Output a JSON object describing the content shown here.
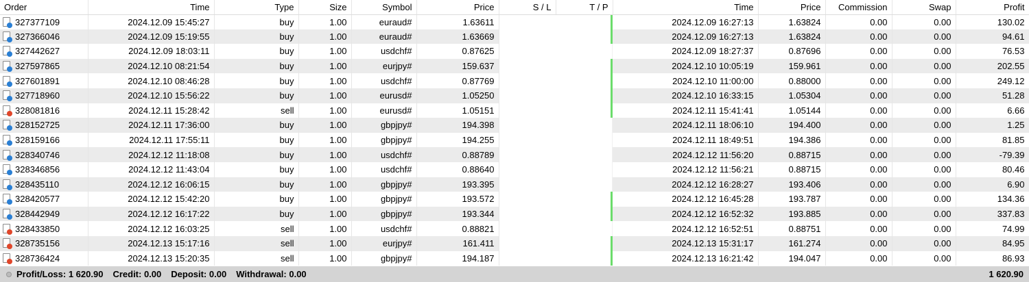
{
  "columns": [
    "Order",
    "Time",
    "Type",
    "Size",
    "Symbol",
    "Price",
    "S / L",
    "T / P",
    "Time",
    "Price",
    "Commission",
    "Swap",
    "Profit"
  ],
  "colors": {
    "profit_marker": "#6bdc6b",
    "buy_icon": "#2a7fd4",
    "sell_icon": "#e0462a",
    "row_alt": "#ebebeb",
    "footer_bg": "#d4d4d4"
  },
  "rows": [
    {
      "order": "327377109",
      "open_time": "2024.12.09 15:45:27",
      "type": "buy",
      "size": "1.00",
      "symbol": "euraud#",
      "open_price": "1.63611",
      "sl": "",
      "tp": "",
      "tp_marker": true,
      "close_time": "2024.12.09 16:27:13",
      "close_price": "1.63824",
      "commission": "0.00",
      "swap": "0.00",
      "profit": "130.02"
    },
    {
      "order": "327366046",
      "open_time": "2024.12.09 15:19:55",
      "type": "buy",
      "size": "1.00",
      "symbol": "euraud#",
      "open_price": "1.63669",
      "sl": "",
      "tp": "",
      "tp_marker": true,
      "close_time": "2024.12.09 16:27:13",
      "close_price": "1.63824",
      "commission": "0.00",
      "swap": "0.00",
      "profit": "94.61"
    },
    {
      "order": "327442627",
      "open_time": "2024.12.09 18:03:11",
      "type": "buy",
      "size": "1.00",
      "symbol": "usdchf#",
      "open_price": "0.87625",
      "sl": "",
      "tp": "",
      "tp_marker": false,
      "close_time": "2024.12.09 18:27:37",
      "close_price": "0.87696",
      "commission": "0.00",
      "swap": "0.00",
      "profit": "76.53"
    },
    {
      "order": "327597865",
      "open_time": "2024.12.10 08:21:54",
      "type": "buy",
      "size": "1.00",
      "symbol": "eurjpy#",
      "open_price": "159.637",
      "sl": "",
      "tp": "",
      "tp_marker": true,
      "close_time": "2024.12.10 10:05:19",
      "close_price": "159.961",
      "commission": "0.00",
      "swap": "0.00",
      "profit": "202.55"
    },
    {
      "order": "327601891",
      "open_time": "2024.12.10 08:46:28",
      "type": "buy",
      "size": "1.00",
      "symbol": "usdchf#",
      "open_price": "0.87769",
      "sl": "",
      "tp": "",
      "tp_marker": true,
      "close_time": "2024.12.10 11:00:00",
      "close_price": "0.88000",
      "commission": "0.00",
      "swap": "0.00",
      "profit": "249.12"
    },
    {
      "order": "327718960",
      "open_time": "2024.12.10 15:56:22",
      "type": "buy",
      "size": "1.00",
      "symbol": "eurusd#",
      "open_price": "1.05250",
      "sl": "",
      "tp": "",
      "tp_marker": true,
      "close_time": "2024.12.10 16:33:15",
      "close_price": "1.05304",
      "commission": "0.00",
      "swap": "0.00",
      "profit": "51.28"
    },
    {
      "order": "328081816",
      "open_time": "2024.12.11 15:28:42",
      "type": "sell",
      "size": "1.00",
      "symbol": "eurusd#",
      "open_price": "1.05151",
      "sl": "",
      "tp": "",
      "tp_marker": true,
      "close_time": "2024.12.11 15:41:41",
      "close_price": "1.05144",
      "commission": "0.00",
      "swap": "0.00",
      "profit": "6.66"
    },
    {
      "order": "328152725",
      "open_time": "2024.12.11 17:36:00",
      "type": "buy",
      "size": "1.00",
      "symbol": "gbpjpy#",
      "open_price": "194.398",
      "sl": "",
      "tp": "",
      "tp_marker": false,
      "close_time": "2024.12.11 18:06:10",
      "close_price": "194.400",
      "commission": "0.00",
      "swap": "0.00",
      "profit": "1.25"
    },
    {
      "order": "328159166",
      "open_time": "2024.12.11 17:55:11",
      "type": "buy",
      "size": "1.00",
      "symbol": "gbpjpy#",
      "open_price": "194.255",
      "sl": "",
      "tp": "",
      "tp_marker": false,
      "close_time": "2024.12.11 18:49:51",
      "close_price": "194.386",
      "commission": "0.00",
      "swap": "0.00",
      "profit": "81.85"
    },
    {
      "order": "328340746",
      "open_time": "2024.12.12 11:18:08",
      "type": "buy",
      "size": "1.00",
      "symbol": "usdchf#",
      "open_price": "0.88789",
      "sl": "",
      "tp": "",
      "tp_marker": false,
      "close_time": "2024.12.12 11:56:20",
      "close_price": "0.88715",
      "commission": "0.00",
      "swap": "0.00",
      "profit": "-79.39"
    },
    {
      "order": "328346856",
      "open_time": "2024.12.12 11:43:04",
      "type": "buy",
      "size": "1.00",
      "symbol": "usdchf#",
      "open_price": "0.88640",
      "sl": "",
      "tp": "",
      "tp_marker": false,
      "close_time": "2024.12.12 11:56:21",
      "close_price": "0.88715",
      "commission": "0.00",
      "swap": "0.00",
      "profit": "80.46"
    },
    {
      "order": "328435110",
      "open_time": "2024.12.12 16:06:15",
      "type": "buy",
      "size": "1.00",
      "symbol": "gbpjpy#",
      "open_price": "193.395",
      "sl": "",
      "tp": "",
      "tp_marker": false,
      "close_time": "2024.12.12 16:28:27",
      "close_price": "193.406",
      "commission": "0.00",
      "swap": "0.00",
      "profit": "6.90"
    },
    {
      "order": "328420577",
      "open_time": "2024.12.12 15:42:20",
      "type": "buy",
      "size": "1.00",
      "symbol": "gbpjpy#",
      "open_price": "193.572",
      "sl": "",
      "tp": "",
      "tp_marker": true,
      "close_time": "2024.12.12 16:45:28",
      "close_price": "193.787",
      "commission": "0.00",
      "swap": "0.00",
      "profit": "134.36"
    },
    {
      "order": "328442949",
      "open_time": "2024.12.12 16:17:22",
      "type": "buy",
      "size": "1.00",
      "symbol": "gbpjpy#",
      "open_price": "193.344",
      "sl": "",
      "tp": "",
      "tp_marker": true,
      "close_time": "2024.12.12 16:52:32",
      "close_price": "193.885",
      "commission": "0.00",
      "swap": "0.00",
      "profit": "337.83"
    },
    {
      "order": "328433850",
      "open_time": "2024.12.12 16:03:25",
      "type": "sell",
      "size": "1.00",
      "symbol": "usdchf#",
      "open_price": "0.88821",
      "sl": "",
      "tp": "",
      "tp_marker": false,
      "close_time": "2024.12.12 16:52:51",
      "close_price": "0.88751",
      "commission": "0.00",
      "swap": "0.00",
      "profit": "74.99"
    },
    {
      "order": "328735156",
      "open_time": "2024.12.13 15:17:16",
      "type": "sell",
      "size": "1.00",
      "symbol": "eurjpy#",
      "open_price": "161.411",
      "sl": "",
      "tp": "",
      "tp_marker": true,
      "close_time": "2024.12.13 15:31:17",
      "close_price": "161.274",
      "commission": "0.00",
      "swap": "0.00",
      "profit": "84.95"
    },
    {
      "order": "328736424",
      "open_time": "2024.12.13 15:20:35",
      "type": "sell",
      "size": "1.00",
      "symbol": "gbpjpy#",
      "open_price": "194.187",
      "sl": "",
      "tp": "",
      "tp_marker": true,
      "close_time": "2024.12.13 16:21:42",
      "close_price": "194.047",
      "commission": "0.00",
      "swap": "0.00",
      "profit": "86.93"
    }
  ],
  "footer": {
    "profit_loss": "Profit/Loss: 1 620.90",
    "credit": "Credit: 0.00",
    "deposit": "Deposit: 0.00",
    "withdrawal": "Withdrawal: 0.00",
    "total": "1 620.90"
  }
}
